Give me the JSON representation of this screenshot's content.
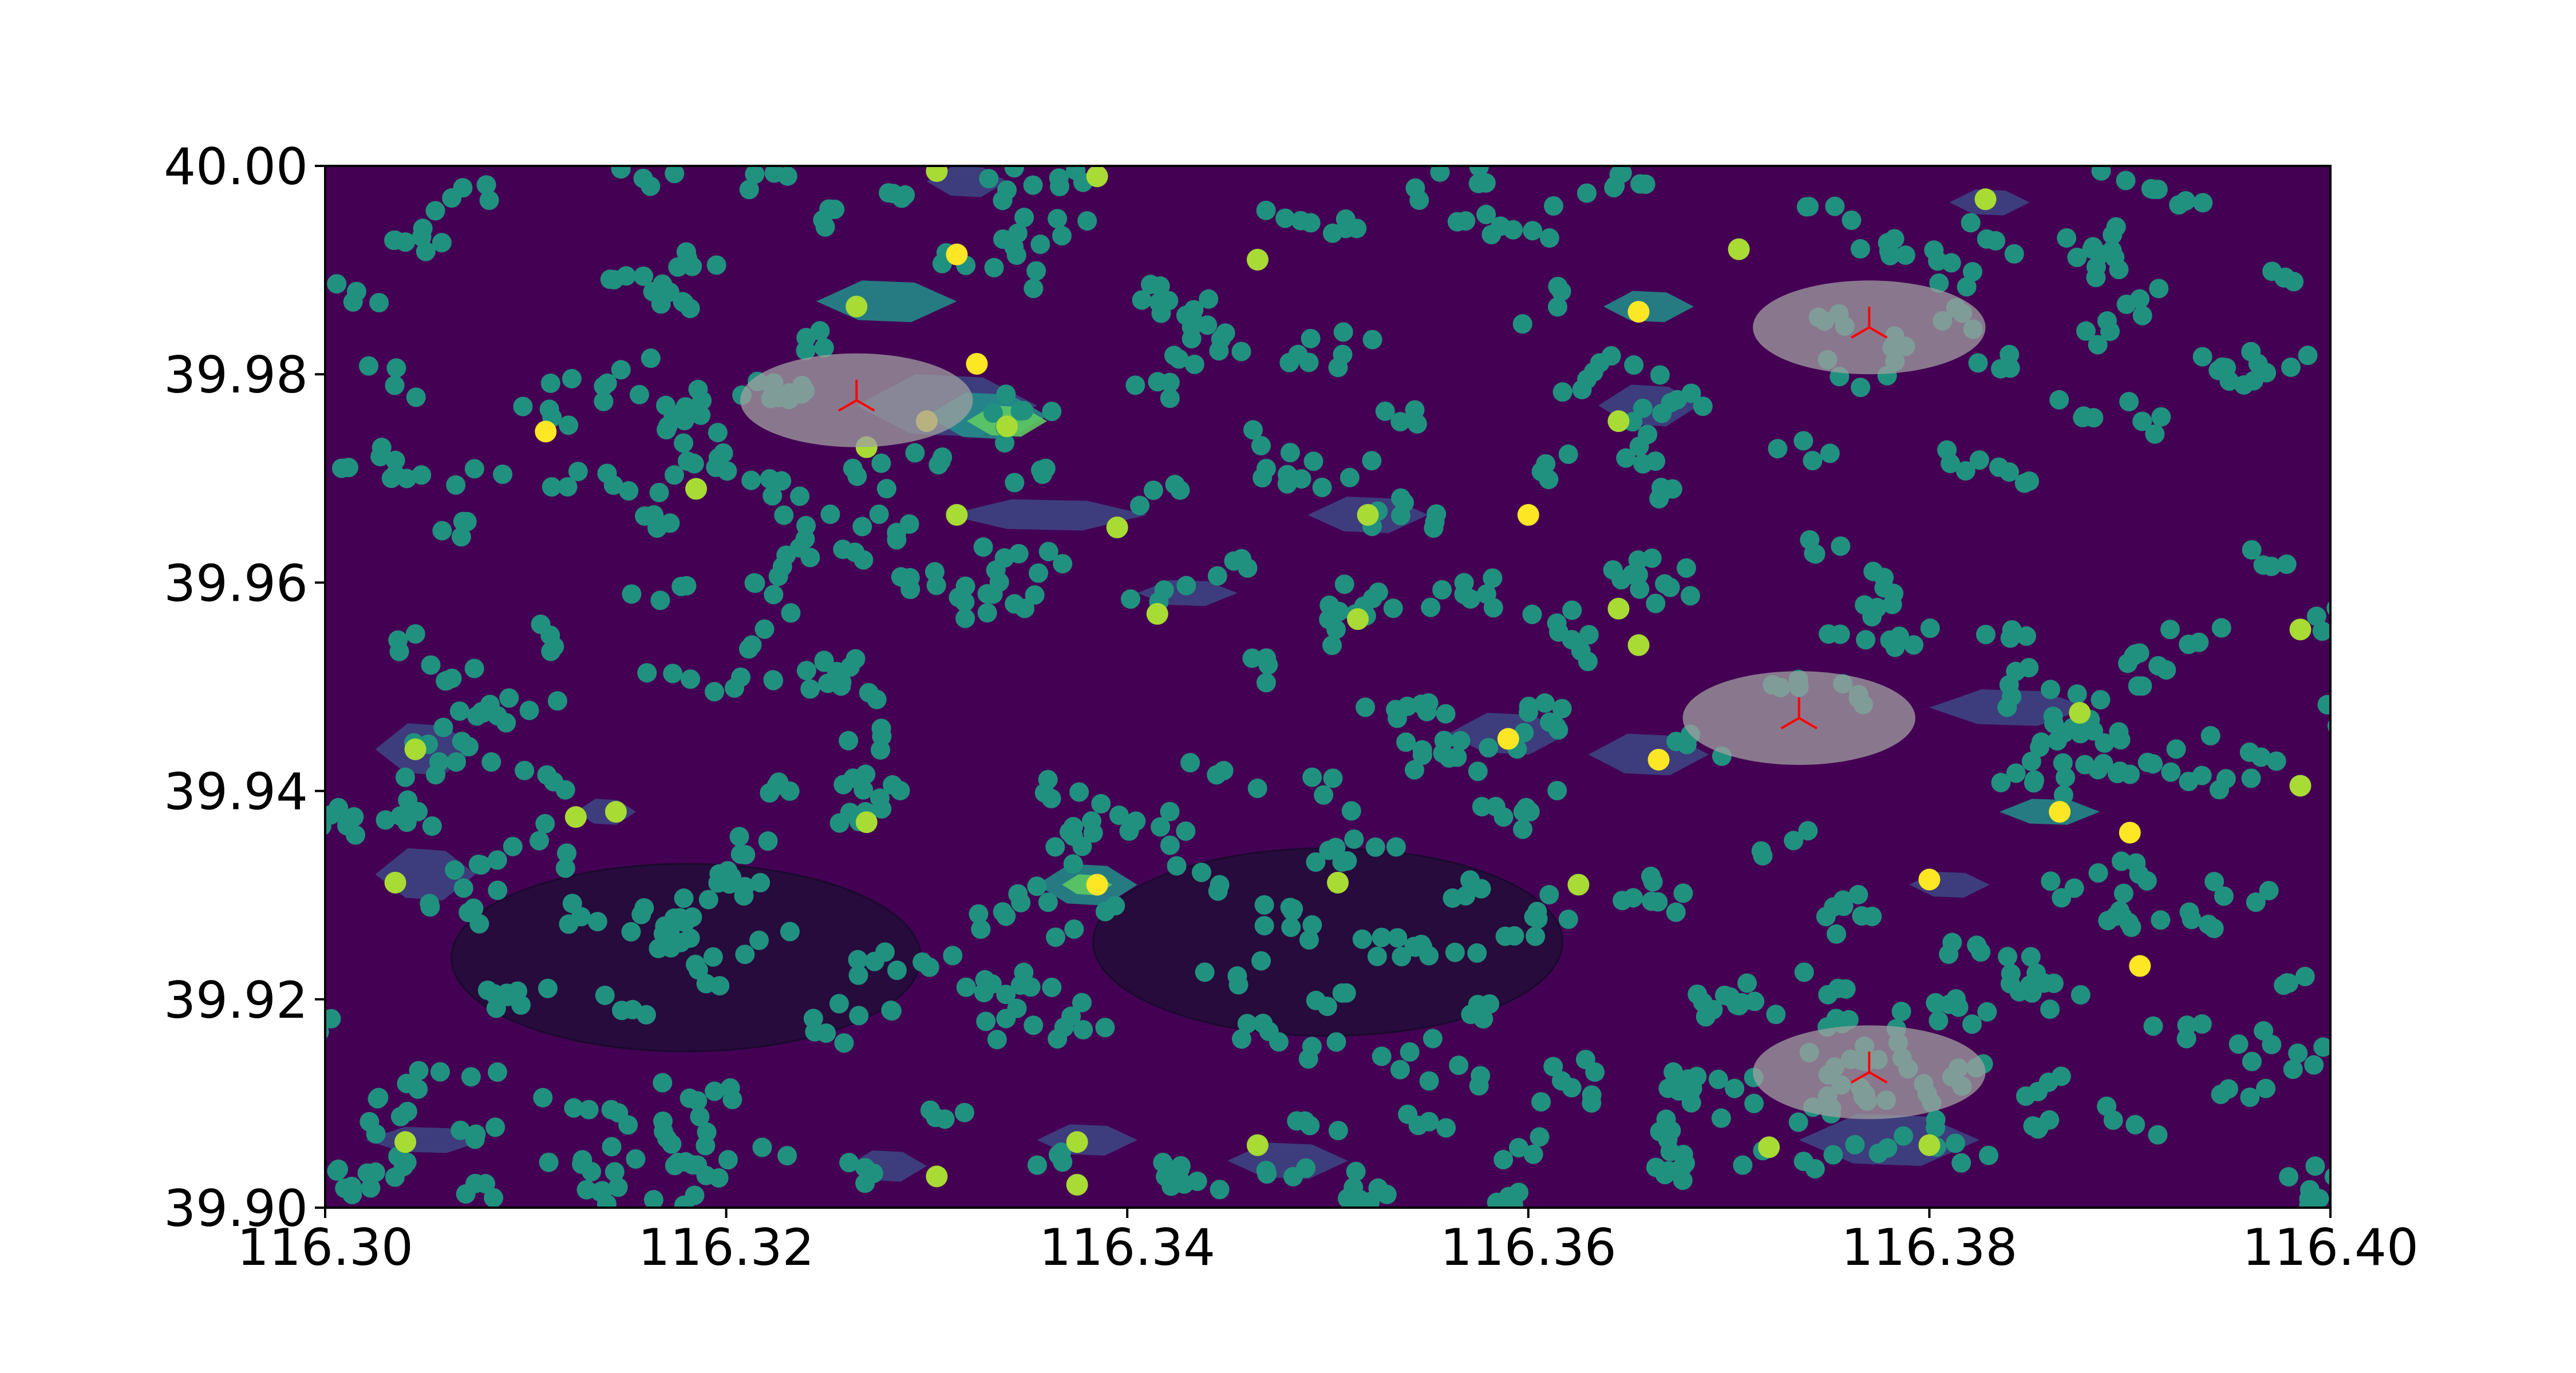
{
  "chart_data": {
    "type": "scatter",
    "title": "",
    "xlabel": "",
    "ylabel": "",
    "xlim": [
      116.3,
      116.4
    ],
    "ylim": [
      39.9,
      40.0
    ],
    "grid": false,
    "x_ticks": [
      "116.30",
      "116.32",
      "116.34",
      "116.36",
      "116.38",
      "116.40"
    ],
    "y_ticks": [
      "39.90",
      "39.92",
      "39.94",
      "39.96",
      "39.98",
      "40.00"
    ],
    "colors": {
      "background": "#440154",
      "contour_low": "#3b528b",
      "contour_mid": "#21918c",
      "contour_high": "#5ec962",
      "points": "#21917f",
      "hot_points": "#fde725",
      "warm_points": "#a8db34",
      "cluster_ellipse": "#a0a0a0",
      "dark_ellipse": "#1e0f35",
      "centroid_marker": "#ff0000"
    },
    "clusters": [
      {
        "center": [
          116.3265,
          39.9775
        ],
        "rx": 0.0058,
        "ry": 0.0045,
        "shade": "light",
        "marker": true
      },
      {
        "center": [
          116.377,
          39.9845
        ],
        "rx": 0.0058,
        "ry": 0.0045,
        "shade": "light",
        "marker": true
      },
      {
        "center": [
          116.3735,
          39.947
        ],
        "rx": 0.0058,
        "ry": 0.0045,
        "shade": "light",
        "marker": true
      },
      {
        "center": [
          116.377,
          39.913
        ],
        "rx": 0.0058,
        "ry": 0.0045,
        "shade": "light",
        "marker": true
      },
      {
        "center": [
          116.318,
          39.924
        ],
        "rx": 0.0117,
        "ry": 0.009,
        "shade": "dark",
        "marker": false
      },
      {
        "center": [
          116.35,
          39.9255
        ],
        "rx": 0.0117,
        "ry": 0.009,
        "shade": "dark",
        "marker": false
      }
    ],
    "density_patches": [
      {
        "x": 116.332,
        "y": 39.9985,
        "w": 0.004,
        "h": 0.003,
        "level": 1
      },
      {
        "x": 116.328,
        "y": 39.987,
        "w": 0.007,
        "h": 0.004,
        "level": 2
      },
      {
        "x": 116.331,
        "y": 39.977,
        "w": 0.009,
        "h": 0.006,
        "level": 1
      },
      {
        "x": 116.333,
        "y": 39.976,
        "w": 0.006,
        "h": 0.0045,
        "level": 2
      },
      {
        "x": 116.334,
        "y": 39.9755,
        "w": 0.004,
        "h": 0.003,
        "level": 3
      },
      {
        "x": 116.336,
        "y": 39.9665,
        "w": 0.01,
        "h": 0.003,
        "level": 1
      },
      {
        "x": 116.352,
        "y": 39.9665,
        "w": 0.006,
        "h": 0.0035,
        "level": 1
      },
      {
        "x": 116.366,
        "y": 39.9865,
        "w": 0.0045,
        "h": 0.003,
        "level": 2
      },
      {
        "x": 116.366,
        "y": 39.977,
        "w": 0.005,
        "h": 0.004,
        "level": 1
      },
      {
        "x": 116.343,
        "y": 39.959,
        "w": 0.005,
        "h": 0.0025,
        "level": 1
      },
      {
        "x": 116.359,
        "y": 39.9455,
        "w": 0.006,
        "h": 0.004,
        "level": 1
      },
      {
        "x": 116.366,
        "y": 39.9435,
        "w": 0.006,
        "h": 0.004,
        "level": 1
      },
      {
        "x": 116.384,
        "y": 39.948,
        "w": 0.008,
        "h": 0.0035,
        "level": 1
      },
      {
        "x": 116.338,
        "y": 39.931,
        "w": 0.005,
        "h": 0.004,
        "level": 2
      },
      {
        "x": 116.338,
        "y": 39.931,
        "w": 0.0025,
        "h": 0.002,
        "level": 3
      },
      {
        "x": 116.386,
        "y": 39.938,
        "w": 0.005,
        "h": 0.0025,
        "level": 2
      },
      {
        "x": 116.381,
        "y": 39.931,
        "w": 0.004,
        "h": 0.0025,
        "level": 1
      },
      {
        "x": 116.305,
        "y": 39.944,
        "w": 0.005,
        "h": 0.005,
        "level": 1
      },
      {
        "x": 116.305,
        "y": 39.932,
        "w": 0.005,
        "h": 0.005,
        "level": 1
      },
      {
        "x": 116.314,
        "y": 39.938,
        "w": 0.003,
        "h": 0.0025,
        "level": 1
      },
      {
        "x": 116.305,
        "y": 39.9065,
        "w": 0.006,
        "h": 0.0025,
        "level": 1
      },
      {
        "x": 116.338,
        "y": 39.9065,
        "w": 0.005,
        "h": 0.003,
        "level": 1
      },
      {
        "x": 116.348,
        "y": 39.9045,
        "w": 0.006,
        "h": 0.0035,
        "level": 1
      },
      {
        "x": 116.378,
        "y": 39.9065,
        "w": 0.009,
        "h": 0.005,
        "level": 1
      },
      {
        "x": 116.328,
        "y": 39.904,
        "w": 0.004,
        "h": 0.003,
        "level": 1
      },
      {
        "x": 116.383,
        "y": 39.9965,
        "w": 0.004,
        "h": 0.0025,
        "level": 1
      }
    ],
    "highlight_points": [
      {
        "x": 116.311,
        "y": 39.9745,
        "c": "hot"
      },
      {
        "x": 116.3315,
        "y": 39.9915,
        "c": "hot"
      },
      {
        "x": 116.3325,
        "y": 39.981,
        "c": "hot"
      },
      {
        "x": 116.33,
        "y": 39.9755,
        "c": "hot"
      },
      {
        "x": 116.334,
        "y": 39.975,
        "c": "warm"
      },
      {
        "x": 116.327,
        "y": 39.973,
        "c": "warm"
      },
      {
        "x": 116.3315,
        "y": 39.9665,
        "c": "warm"
      },
      {
        "x": 116.352,
        "y": 39.9665,
        "c": "warm"
      },
      {
        "x": 116.36,
        "y": 39.9665,
        "c": "hot"
      },
      {
        "x": 116.3655,
        "y": 39.986,
        "c": "hot"
      },
      {
        "x": 116.3465,
        "y": 39.991,
        "c": "warm"
      },
      {
        "x": 116.3705,
        "y": 39.992,
        "c": "warm"
      },
      {
        "x": 116.3305,
        "y": 39.9995,
        "c": "warm"
      },
      {
        "x": 116.3385,
        "y": 39.999,
        "c": "warm"
      },
      {
        "x": 116.3385,
        "y": 39.931,
        "c": "hot"
      },
      {
        "x": 116.359,
        "y": 39.945,
        "c": "hot"
      },
      {
        "x": 116.3665,
        "y": 39.943,
        "c": "hot"
      },
      {
        "x": 116.3865,
        "y": 39.938,
        "c": "hot"
      },
      {
        "x": 116.39,
        "y": 39.936,
        "c": "hot"
      },
      {
        "x": 116.38,
        "y": 39.9315,
        "c": "hot"
      },
      {
        "x": 116.3905,
        "y": 39.9232,
        "c": "hot"
      },
      {
        "x": 116.3985,
        "y": 39.9405,
        "c": "warm"
      },
      {
        "x": 116.3045,
        "y": 39.944,
        "c": "warm"
      },
      {
        "x": 116.3035,
        "y": 39.9312,
        "c": "warm"
      },
      {
        "x": 116.3145,
        "y": 39.938,
        "c": "warm"
      },
      {
        "x": 116.3625,
        "y": 39.931,
        "c": "warm"
      },
      {
        "x": 116.3505,
        "y": 39.9312,
        "c": "warm"
      },
      {
        "x": 116.3185,
        "y": 39.969,
        "c": "warm"
      },
      {
        "x": 116.3415,
        "y": 39.957,
        "c": "warm"
      },
      {
        "x": 116.3515,
        "y": 39.9565,
        "c": "warm"
      },
      {
        "x": 116.3645,
        "y": 39.9575,
        "c": "warm"
      },
      {
        "x": 116.3655,
        "y": 39.954,
        "c": "warm"
      },
      {
        "x": 116.3395,
        "y": 39.9653,
        "c": "warm"
      },
      {
        "x": 116.3645,
        "y": 39.9755,
        "c": "warm"
      },
      {
        "x": 116.3305,
        "y": 39.903,
        "c": "warm"
      },
      {
        "x": 116.304,
        "y": 39.9063,
        "c": "warm"
      },
      {
        "x": 116.3375,
        "y": 39.9063,
        "c": "warm"
      },
      {
        "x": 116.3375,
        "y": 39.9022,
        "c": "warm"
      },
      {
        "x": 116.3465,
        "y": 39.906,
        "c": "warm"
      },
      {
        "x": 116.372,
        "y": 39.9058,
        "c": "warm"
      },
      {
        "x": 116.38,
        "y": 39.906,
        "c": "warm"
      },
      {
        "x": 116.3828,
        "y": 39.9968,
        "c": "warm"
      },
      {
        "x": 116.3875,
        "y": 39.9475,
        "c": "warm"
      },
      {
        "x": 116.3985,
        "y": 39.9555,
        "c": "warm"
      },
      {
        "x": 116.3265,
        "y": 39.9865,
        "c": "warm"
      },
      {
        "x": 116.3125,
        "y": 39.9375,
        "c": "warm"
      },
      {
        "x": 116.327,
        "y": 39.937,
        "c": "warm"
      }
    ],
    "background_points": {
      "count": 1300,
      "seed": 7,
      "x_range": [
        116.3,
        116.4
      ],
      "y_range": [
        39.9,
        40.0
      ]
    }
  }
}
